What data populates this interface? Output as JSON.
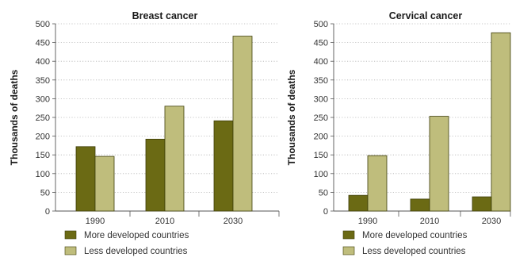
{
  "chart_data": [
    {
      "type": "bar",
      "title": "Breast cancer",
      "ylabel": "Thousands of deaths",
      "xlabel": "",
      "categories": [
        "1990",
        "2010",
        "2030"
      ],
      "ylim": [
        0,
        500
      ],
      "yticks": [
        0,
        50,
        100,
        150,
        200,
        250,
        300,
        350,
        400,
        450,
        500
      ],
      "grid": "horizontal dotted",
      "series": [
        {
          "name": "More developed countries",
          "values": [
            172,
            192,
            241
          ],
          "color": "#6b6a14"
        },
        {
          "name": "Less developed countries",
          "values": [
            146,
            280,
            467
          ],
          "color": "#bfbd7c"
        }
      ]
    },
    {
      "type": "bar",
      "title": "Cervical cancer",
      "ylabel": "Thousands of deaths",
      "xlabel": "",
      "categories": [
        "1990",
        "2010",
        "2030"
      ],
      "ylim": [
        0,
        500
      ],
      "yticks": [
        0,
        50,
        100,
        150,
        200,
        250,
        300,
        350,
        400,
        450,
        500
      ],
      "grid": "horizontal dotted",
      "series": [
        {
          "name": "More developed countries",
          "values": [
            42,
            32,
            38
          ],
          "color": "#6b6a14"
        },
        {
          "name": "Less developed countries",
          "values": [
            148,
            253,
            476
          ],
          "color": "#bfbd7c"
        }
      ]
    }
  ],
  "legend": {
    "placement": "bottom",
    "items": [
      {
        "label": "More developed countries",
        "color": "#6b6a14"
      },
      {
        "label": "Less developed countries",
        "color": "#bfbd7c"
      }
    ]
  }
}
